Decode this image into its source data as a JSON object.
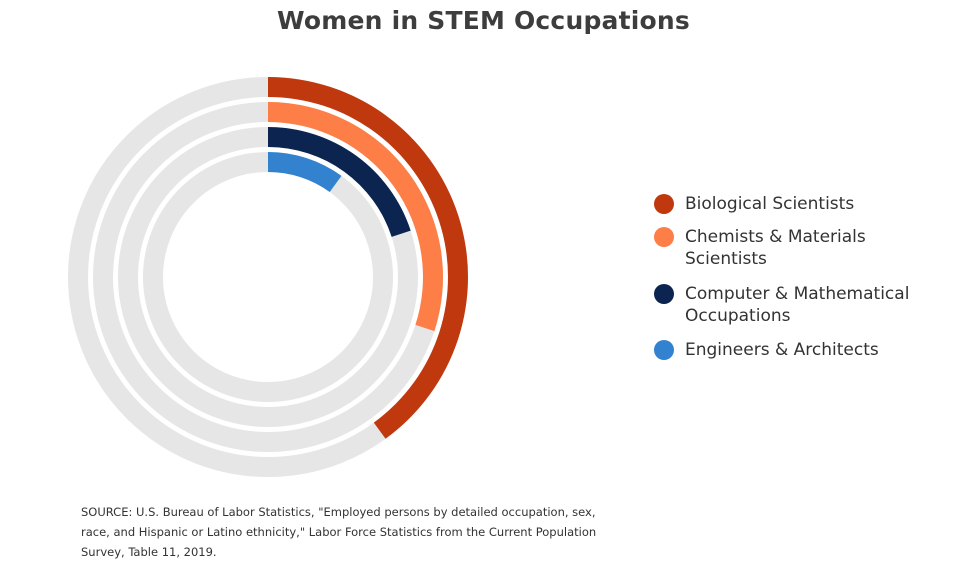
{
  "title": "Women in STEM Occupations",
  "chart_data": {
    "type": "radial-bar",
    "title": "Women in STEM Occupations",
    "unit": "percent women",
    "max": 100,
    "series": [
      {
        "name": "Biological Scientists",
        "value": 40,
        "color": "#c0390e"
      },
      {
        "name": "Chemists & Materials Scientists",
        "value": 30,
        "color": "#fd7e47"
      },
      {
        "name": "Computer & Mathematical Occupations",
        "value": 20,
        "color": "#0b2450"
      },
      {
        "name": "Engineers & Architects",
        "value": 10,
        "color": "#3282d0"
      }
    ],
    "track_color": "#e6e6e6",
    "legend_position": "right"
  },
  "source": "SOURCE: U.S. Bureau of Labor Statistics, \"Employed persons by detailed occupation, sex, race, and Hispanic or Latino ethnicity,\" Labor Force Statistics from the Current Population Survey, Table 11, 2019."
}
